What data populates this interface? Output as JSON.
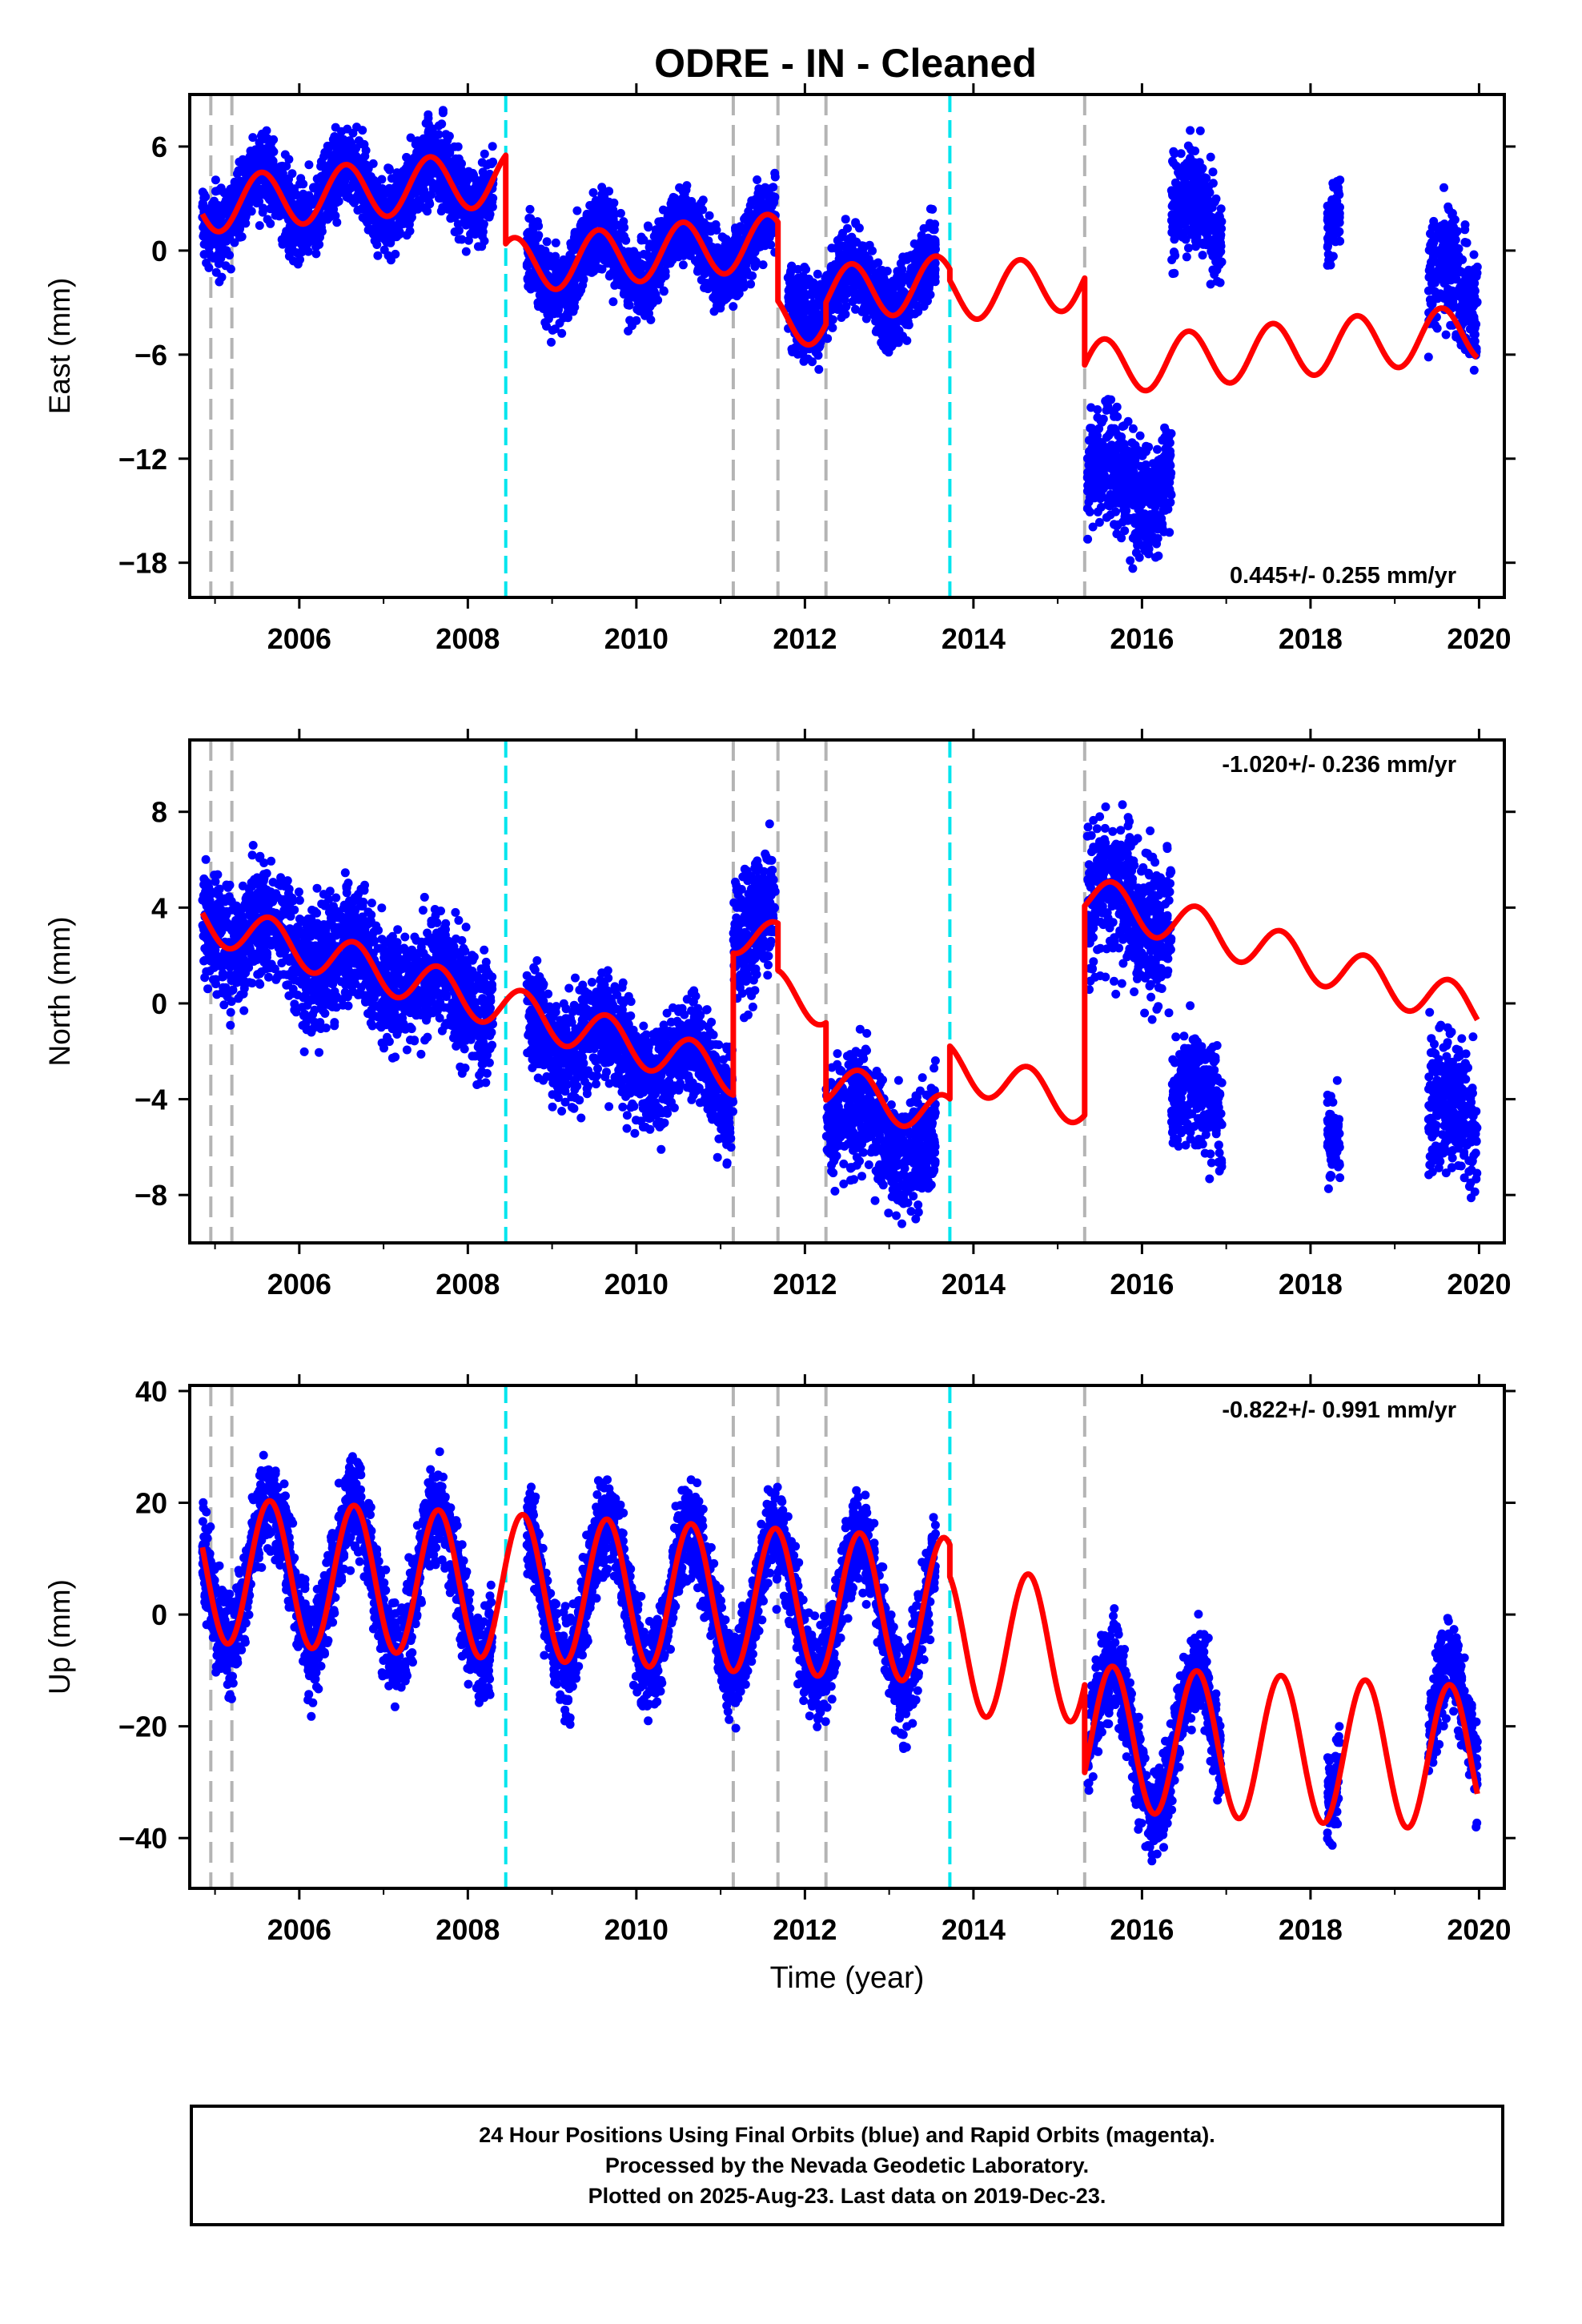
{
  "title": "ODRE  - IN - Cleaned",
  "colors": {
    "data": "#0000ff",
    "model": "#ff0000",
    "gray": "#b4b4b4",
    "cyan": "#00e5ee",
    "frame": "#000000"
  },
  "footer": {
    "line1": "24 Hour Positions Using Final Orbits (blue) and Rapid Orbits (magenta).",
    "line2": "Processed by the Nevada Geodetic Laboratory.",
    "line3": "Plotted on 2025-Aug-23. Last data on 2019-Dec-23."
  },
  "chart_data": [
    {
      "type": "scatter",
      "ylabel": "East (mm)",
      "xlabel": "",
      "xlim": [
        2004.7,
        2020.3
      ],
      "ylim": [
        -20,
        9
      ],
      "xticks": [
        "2006",
        "2008",
        "2010",
        "2012",
        "2014",
        "2016",
        "2018",
        "2020"
      ],
      "yticks": [
        "6",
        "0",
        "-6",
        "-12",
        "-18"
      ],
      "rate_label": "0.445+/- 0.255 mm/yr",
      "rate_position": "bottom-right",
      "gray_lines": [
        2004.95,
        2005.2,
        2011.15,
        2011.68,
        2012.25,
        2015.32
      ],
      "cyan_lines": [
        2008.45,
        2013.72
      ],
      "model_segments": [
        {
          "start": 2004.85,
          "end": 2008.45,
          "offset": 2.6
        },
        {
          "start": 2008.45,
          "end": 2011.68,
          "offset": -0.9
        },
        {
          "start": 2011.68,
          "end": 2012.25,
          "offset": -4.0
        },
        {
          "start": 2012.25,
          "end": 2013.72,
          "offset": -2.5
        },
        {
          "start": 2013.72,
          "end": 2015.32,
          "offset": -2.5
        },
        {
          "start": 2015.32,
          "end": 2019.98,
          "offset": -6.8
        }
      ],
      "model_amp": 1.6,
      "model_phase": 0.05,
      "model_rate": 0.445,
      "data_clusters": [
        {
          "start": 2004.85,
          "end": 2008.3,
          "offset": 2.6,
          "noise": 1.2
        },
        {
          "start": 2008.7,
          "end": 2011.65,
          "offset": -0.9,
          "noise": 1.2
        },
        {
          "start": 2011.8,
          "end": 2013.55,
          "offset": -2.6,
          "noise": 1.2
        },
        {
          "start": 2015.35,
          "end": 2016.35,
          "offset": -13.5,
          "noise": 1.7
        },
        {
          "start": 2016.35,
          "end": 2016.95,
          "offset": 1.5,
          "noise": 1.5
        },
        {
          "start": 2018.2,
          "end": 2018.35,
          "offset": 2.0,
          "noise": 1.2
        },
        {
          "start": 2019.4,
          "end": 2019.98,
          "offset": -2.5,
          "noise": 1.7
        }
      ]
    },
    {
      "type": "scatter",
      "ylabel": "North (mm)",
      "xlabel": "",
      "xlim": [
        2004.7,
        2020.3
      ],
      "ylim": [
        -10,
        11
      ],
      "xticks": [
        "2006",
        "2008",
        "2010",
        "2012",
        "2014",
        "2016",
        "2018",
        "2020"
      ],
      "yticks": [
        "8",
        "4",
        "0",
        "-4",
        "-8"
      ],
      "rate_label": "-1.020+/- 0.236 mm/yr",
      "rate_position": "top-right",
      "gray_lines": [
        2004.95,
        2005.2,
        2011.15,
        2011.68,
        2012.25,
        2015.32
      ],
      "cyan_lines": [
        2008.45,
        2013.72
      ],
      "model_segments": [
        {
          "start": 2004.85,
          "end": 2011.15,
          "offset": 3.5
        },
        {
          "start": 2011.15,
          "end": 2011.68,
          "offset": 3.0
        },
        {
          "start": 2011.68,
          "end": 2012.25,
          "offset": 0.5
        },
        {
          "start": 2012.25,
          "end": 2013.72,
          "offset": -3.3
        },
        {
          "start": 2013.72,
          "end": 2015.32,
          "offset": -2.6
        },
        {
          "start": 2015.32,
          "end": 2019.98,
          "offset": 4.5
        }
      ],
      "model_amp": 0.9,
      "model_phase": 0.15,
      "model_rate": -1.02,
      "data_clusters": [
        {
          "start": 2004.85,
          "end": 2008.3,
          "offset": 3.5,
          "noise": 1.3
        },
        {
          "start": 2008.7,
          "end": 2011.15,
          "offset": -0.8,
          "noise": 1.2
        },
        {
          "start": 2011.15,
          "end": 2011.65,
          "offset": 3.5,
          "noise": 1.5
        },
        {
          "start": 2012.25,
          "end": 2013.55,
          "offset": -4.6,
          "noise": 1.3
        },
        {
          "start": 2015.35,
          "end": 2016.35,
          "offset": 4.5,
          "noise": 1.6
        },
        {
          "start": 2016.35,
          "end": 2016.95,
          "offset": -4.0,
          "noise": 1.2
        },
        {
          "start": 2018.2,
          "end": 2018.35,
          "offset": -5.0,
          "noise": 1.0
        },
        {
          "start": 2019.4,
          "end": 2019.98,
          "offset": -4.5,
          "noise": 1.5
        }
      ]
    },
    {
      "type": "scatter",
      "ylabel": "Up (mm)",
      "xlabel": "Time (year)",
      "xlim": [
        2004.7,
        2020.3
      ],
      "ylim": [
        -49,
        41
      ],
      "xticks": [
        "2006",
        "2008",
        "2010",
        "2012",
        "2014",
        "2016",
        "2018",
        "2020"
      ],
      "yticks": [
        "40",
        "20",
        "0",
        "-20",
        "-40"
      ],
      "rate_label": "-0.822+/- 0.991 mm/yr",
      "rate_position": "top-right",
      "gray_lines": [
        2004.95,
        2005.2,
        2011.15,
        2011.68,
        2012.25,
        2015.32
      ],
      "cyan_lines": [
        2008.45,
        2013.72
      ],
      "model_segments": [
        {
          "start": 2004.85,
          "end": 2013.72,
          "offset": 8.0
        },
        {
          "start": 2013.72,
          "end": 2015.32,
          "offset": -5.0
        },
        {
          "start": 2015.32,
          "end": 2019.98,
          "offset": -22.0
        }
      ],
      "model_amp": 13.0,
      "model_phase": 0.15,
      "model_rate": -0.822,
      "data_clusters": [
        {
          "start": 2004.85,
          "end": 2008.3,
          "offset": 8.0,
          "noise": 4.5
        },
        {
          "start": 2008.7,
          "end": 2013.55,
          "offset": 4.0,
          "noise": 4.5
        },
        {
          "start": 2015.35,
          "end": 2016.95,
          "offset": -22.0,
          "noise": 4.5
        },
        {
          "start": 2018.2,
          "end": 2018.35,
          "offset": -22.0,
          "noise": 4.0
        },
        {
          "start": 2019.4,
          "end": 2019.98,
          "offset": -22.0,
          "noise": 4.5
        }
      ]
    }
  ]
}
